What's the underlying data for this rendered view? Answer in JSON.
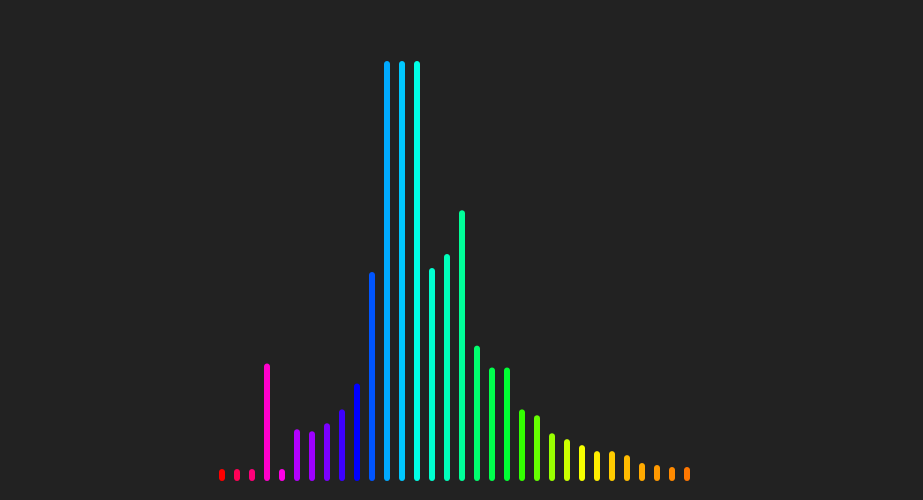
{
  "chart_data": {
    "type": "bar",
    "title": "",
    "xlabel": "",
    "ylabel": "",
    "grid": false,
    "legend": "none",
    "ylim": [
      0,
      420
    ],
    "values": [
      6,
      6,
      6,
      112,
      6,
      46,
      44,
      52,
      66,
      92,
      204,
      416,
      416,
      416,
      208,
      222,
      266,
      130,
      108,
      108,
      66,
      60,
      42,
      36,
      30,
      24,
      24,
      20,
      12,
      10,
      8,
      8
    ],
    "colors": [
      "#ff0000",
      "#ff0055",
      "#ff007a",
      "#ff00cc",
      "#ff00e6",
      "#b300ff",
      "#9d00ff",
      "#7a00ff",
      "#3d00ff",
      "#0000ff",
      "#0055ff",
      "#00aaff",
      "#00c8ff",
      "#00ffe6",
      "#00ffd0",
      "#00ffbb",
      "#00ff99",
      "#00ff6e",
      "#00ff4d",
      "#00ff33",
      "#33ff00",
      "#66ff00",
      "#99ff00",
      "#ccff00",
      "#f5ff00",
      "#ffee00",
      "#ffcc00",
      "#ffbb00",
      "#ffaa00",
      "#ff9900",
      "#ff8a00",
      "#ff7700"
    ]
  }
}
